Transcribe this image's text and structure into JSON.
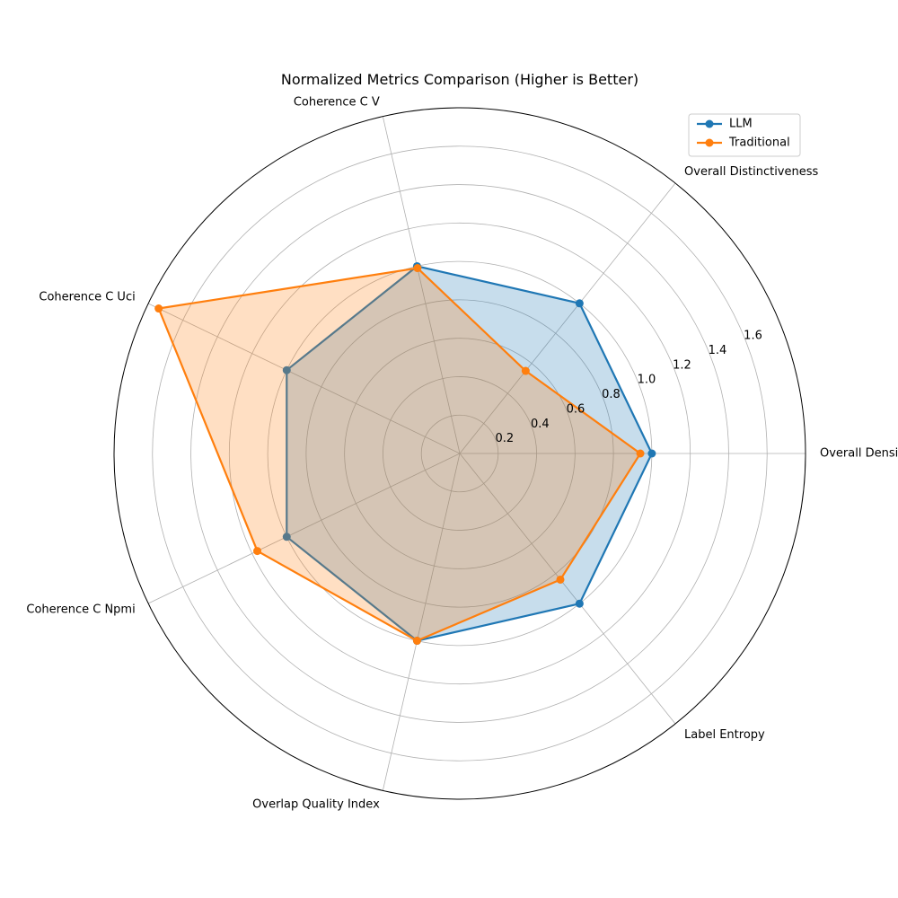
{
  "chart_data": {
    "type": "radar",
    "title": "Normalized Metrics Comparison (Higher is Better)",
    "categories": [
      "Overall Density",
      "Overall Distinctiveness",
      "Coherence C V",
      "Coherence C Uci",
      "Coherence C Npmi",
      "Overlap Quality Index",
      "Label Entropy"
    ],
    "rlim": [
      0,
      1.8
    ],
    "rticks": [
      0.2,
      0.4,
      0.6,
      0.8,
      1.0,
      1.2,
      1.4,
      1.6
    ],
    "rtick_labels": [
      "0.2",
      "0.4",
      "0.6",
      "0.8",
      "1.0",
      "1.2",
      "1.4",
      "1.6"
    ],
    "grid": true,
    "legend_position": "top-right",
    "series": [
      {
        "name": "LLM",
        "color": "#1f77b4",
        "values": [
          1.0,
          1.0,
          1.0,
          1.0,
          1.0,
          1.0,
          1.0
        ]
      },
      {
        "name": "Traditional",
        "color": "#ff7f0e",
        "values": [
          0.94,
          0.55,
          0.99,
          1.74,
          1.17,
          1.0,
          0.84
        ]
      }
    ]
  }
}
